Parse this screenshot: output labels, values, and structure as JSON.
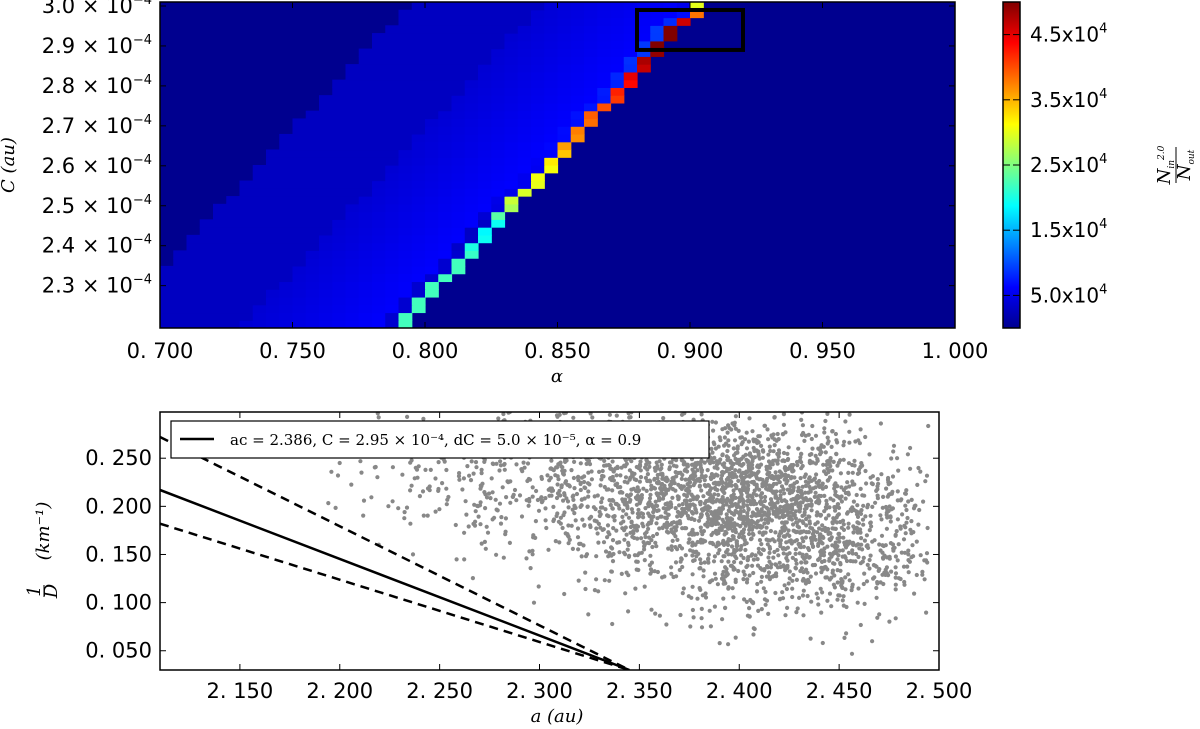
{
  "chart_data": [
    {
      "type": "heatmap",
      "xlabel": "α",
      "ylabel": "C (au)",
      "colorbar_label": "N_in^2.0 / N_out",
      "xlim": [
        0.7,
        1.0
      ],
      "ylim": [
        0.0002194,
        0.000301
      ],
      "x_ticks": [
        0.7,
        0.75,
        0.8,
        0.85,
        0.9,
        0.95,
        1.0
      ],
      "x_tick_labels": [
        "0. 700",
        "0. 750",
        "0. 800",
        "0. 850",
        "0. 900",
        "0. 950",
        "1. 000"
      ],
      "y_ticks": [
        0.00023,
        0.00024,
        0.00025,
        0.00026,
        0.00027,
        0.00028,
        0.00029,
        0.0003
      ],
      "y_tick_mantissas": [
        "2.3",
        "2.4",
        "2.5",
        "2.6",
        "2.7",
        "2.8",
        "2.9",
        "3.0"
      ],
      "y_tick_times": "×",
      "y_tick_base": "10",
      "y_tick_exponent": "−4",
      "colorbar_range": [
        0,
        50000
      ],
      "colorbar_ticks": [
        5000,
        15000,
        25000,
        35000,
        45000
      ],
      "colorbar_tick_labels": [
        "5.0x10",
        "1.5x10",
        "2.5x10",
        "3.5x10",
        "4.5x10"
      ],
      "colorbar_tick_exponent": "4",
      "colormap": "jet",
      "background_value": 1000,
      "band": {
        "description_points_inner_edge": [
          [
            0.79,
            0.0002194
          ],
          [
            0.9045,
            0.000301
          ]
        ],
        "peak_values": [
          [
            0.0002194,
            22000
          ],
          [
            0.00023,
            22000
          ],
          [
            0.000237,
            22000
          ],
          [
            0.00024,
            20000
          ],
          [
            0.000245,
            18000
          ],
          [
            0.00025,
            28000
          ],
          [
            0.000255,
            30000
          ],
          [
            0.00026,
            31000
          ],
          [
            0.000265,
            36000
          ],
          [
            0.00027,
            38000
          ],
          [
            0.000275,
            40000
          ],
          [
            0.00028,
            43000
          ],
          [
            0.000285,
            47000
          ],
          [
            0.00029,
            50000
          ],
          [
            0.000295,
            51000
          ],
          [
            0.0003,
            30000
          ]
        ]
      },
      "highlight_box": {
        "alpha_range": [
          0.88,
          0.92
        ],
        "C_range": [
          0.000289,
          0.000299
        ]
      }
    },
    {
      "type": "scatter",
      "xlabel": "a (au)",
      "ylabel": "1/D (km⁻¹)",
      "ylabel_numerator": "1",
      "ylabel_denominator": "D",
      "ylabel_units": "(km⁻¹)",
      "xlim": [
        2.11,
        2.5
      ],
      "ylim": [
        0.03,
        0.298
      ],
      "x_ticks": [
        2.15,
        2.2,
        2.25,
        2.3,
        2.35,
        2.4,
        2.45,
        2.5
      ],
      "x_tick_labels": [
        "2. 150",
        "2. 200",
        "2. 250",
        "2. 300",
        "2. 350",
        "2. 400",
        "2. 450",
        "2. 500"
      ],
      "y_ticks": [
        0.05,
        0.1,
        0.15,
        0.2,
        0.25
      ],
      "y_tick_labels": [
        "0. 050",
        "0. 100",
        "0. 150",
        "0. 200",
        "0. 250"
      ],
      "point_color": "#888888",
      "legend": "aᴄ = 2.386, C = 2.95 × 10⁻⁴, dC = 5.0 × 10⁻⁵, α = 0.9",
      "legend_placement": "top-left",
      "parameters": {
        "a_c": 2.386,
        "C": 0.000295,
        "dC": 5e-05,
        "alpha": 0.9
      },
      "lines": [
        {
          "style": "solid",
          "points": [
            [
              2.11,
              0.217
            ],
            [
              2.345,
              0.03
            ]
          ]
        },
        {
          "style": "dashed",
          "points": [
            [
              2.11,
              0.272
            ],
            [
              2.345,
              0.03
            ]
          ]
        },
        {
          "style": "dashed",
          "points": [
            [
              2.11,
              0.182
            ],
            [
              2.345,
              0.03
            ]
          ]
        }
      ],
      "density_clusters": [
        {
          "a": 2.39,
          "inv_D": 0.215,
          "spread_a": 0.04,
          "spread_y": 0.035,
          "weight": 0.45
        },
        {
          "a": 2.43,
          "inv_D": 0.16,
          "spread_a": 0.04,
          "spread_y": 0.04,
          "weight": 0.3
        },
        {
          "a": 2.32,
          "inv_D": 0.24,
          "spread_a": 0.06,
          "spread_y": 0.045,
          "weight": 0.25
        }
      ],
      "point_count_estimate": 3000
    }
  ]
}
